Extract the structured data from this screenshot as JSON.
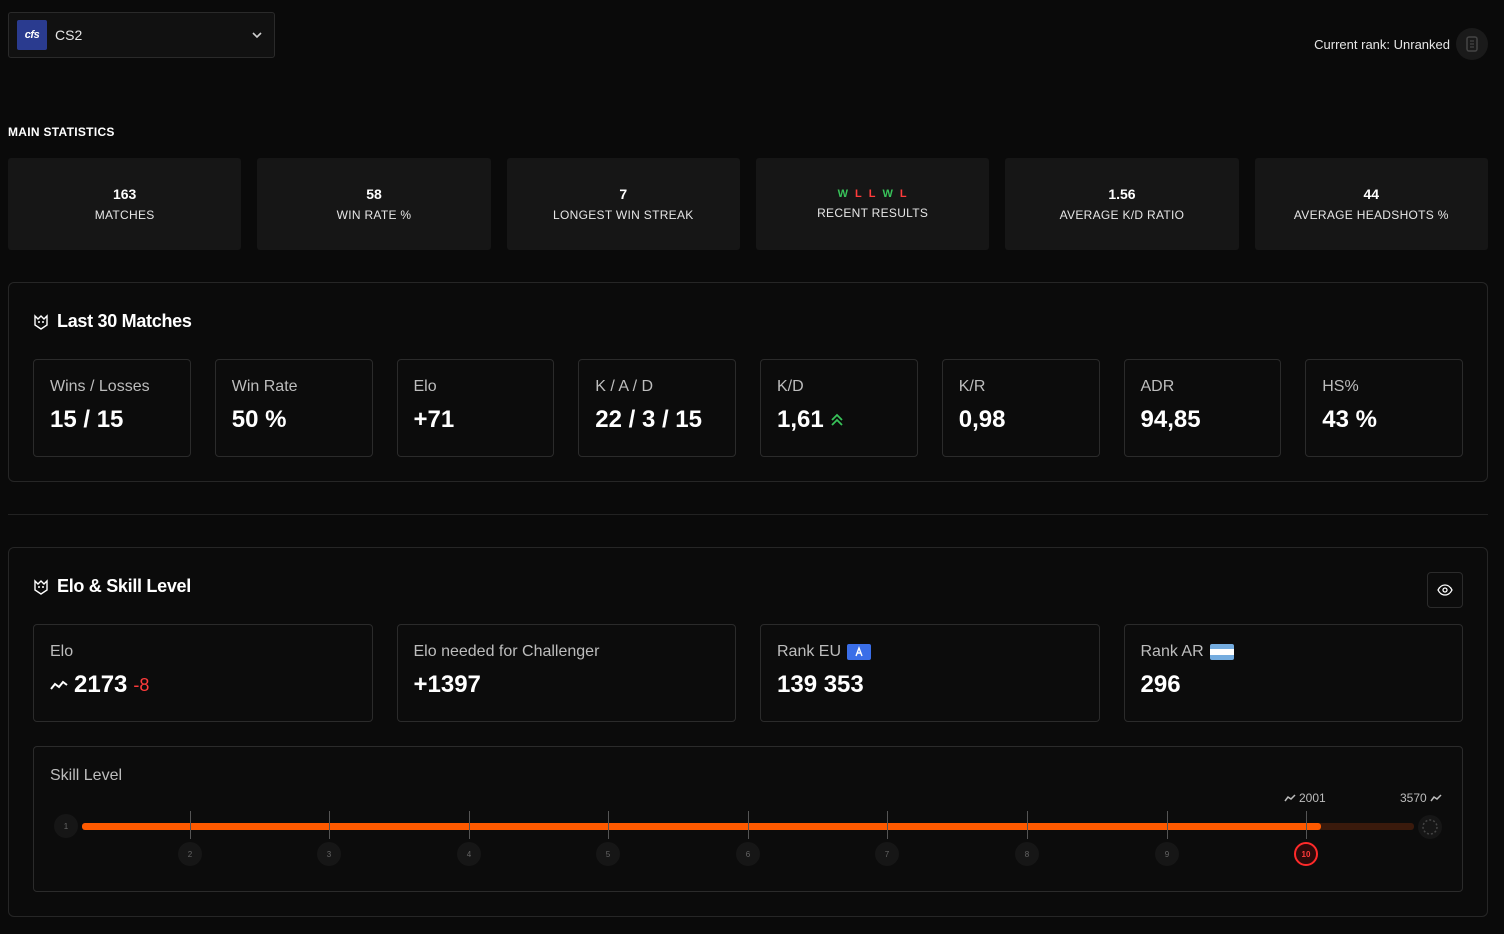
{
  "header": {
    "game_logo_text": "cfs",
    "game_name": "CS2",
    "current_rank_text": "Current rank: Unranked"
  },
  "main_statistics": {
    "title": "MAIN STATISTICS",
    "cards": [
      {
        "value": "163",
        "label": "MATCHES"
      },
      {
        "value": "58",
        "label": "WIN RATE %"
      },
      {
        "value": "7",
        "label": "LONGEST WIN STREAK"
      },
      {
        "results": [
          "W",
          "L",
          "L",
          "W",
          "L"
        ],
        "label": "RECENT RESULTS"
      },
      {
        "value": "1.56",
        "label": "AVERAGE K/D RATIO"
      },
      {
        "value": "44",
        "label": "AVERAGE HEADSHOTS %"
      }
    ]
  },
  "last30": {
    "title": "Last 30 Matches",
    "metrics": [
      {
        "label": "Wins / Losses",
        "value": "15 / 15"
      },
      {
        "label": "Win Rate",
        "value": "50 %"
      },
      {
        "label": "Elo",
        "value": "+71"
      },
      {
        "label": "K / A / D",
        "value": "22 / 3 / 15"
      },
      {
        "label": "K/D",
        "value": "1,61"
      },
      {
        "label": "K/R",
        "value": "0,98"
      },
      {
        "label": "ADR",
        "value": "94,85"
      },
      {
        "label": "HS%",
        "value": "43 %"
      }
    ]
  },
  "elo_skill": {
    "title": "Elo & Skill Level",
    "elo": {
      "label": "Elo",
      "value": "2173",
      "delta": "-8"
    },
    "challenger": {
      "label": "Elo needed for Challenger",
      "value": "+1397"
    },
    "rank_eu": {
      "label": "Rank EU",
      "value": "139 353"
    },
    "rank_ar": {
      "label": "Rank AR",
      "value": "296"
    },
    "skill": {
      "label": "Skill Level",
      "levels": [
        "1",
        "2",
        "3",
        "4",
        "5",
        "6",
        "7",
        "8",
        "9",
        "10"
      ],
      "current_level": 10,
      "level10_elo": "2001",
      "max_elo": "3570",
      "progress_fraction": 0.93
    }
  },
  "colors": {
    "win": "#38c35a",
    "loss": "#ff3b3b",
    "progress": "#ff5a00",
    "eu_flag": "#3a6ee8"
  }
}
